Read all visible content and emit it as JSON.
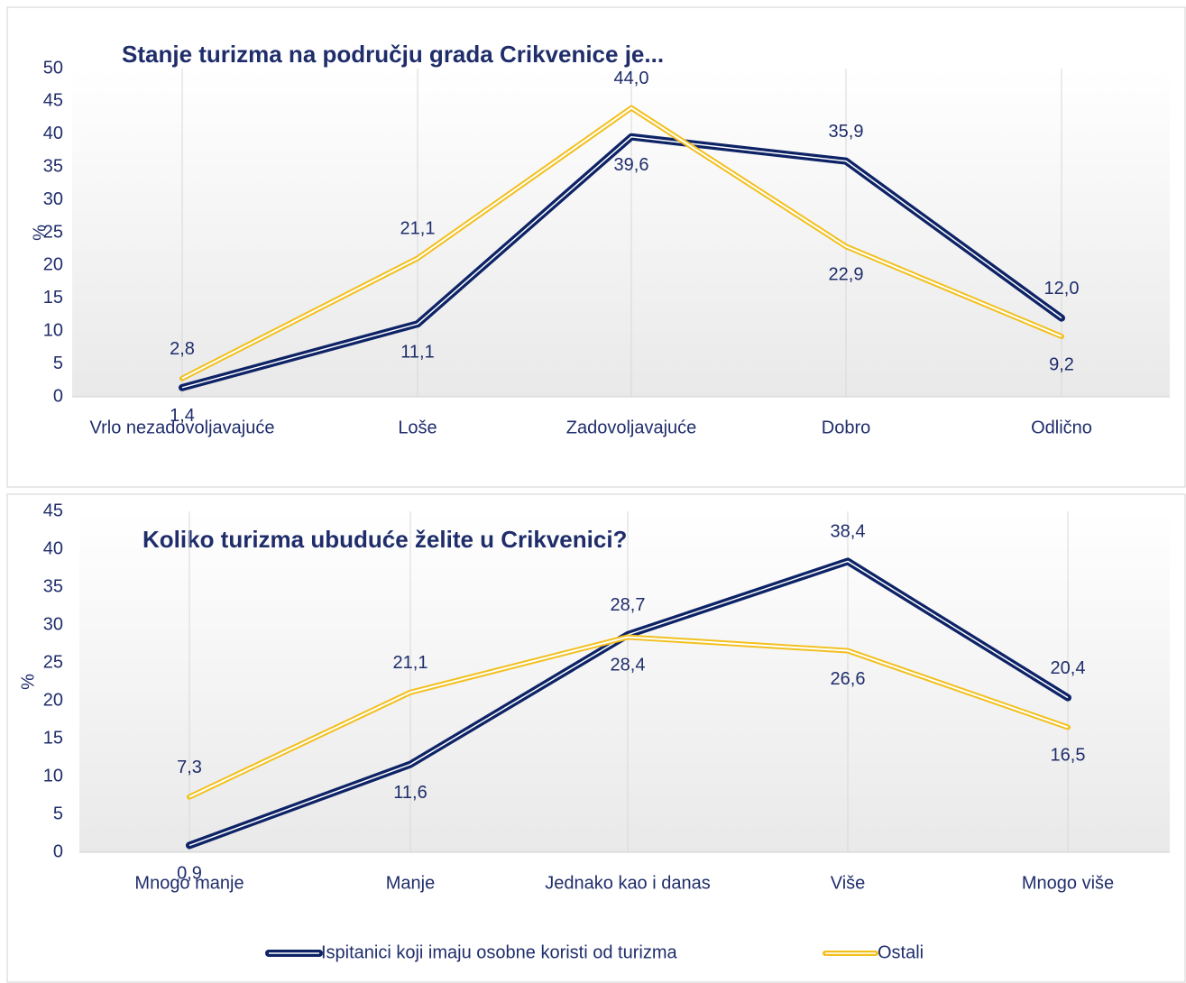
{
  "chart_data": [
    {
      "type": "line",
      "title": "Stanje turizma na području grada Crikvenice je...",
      "y_label": "%",
      "categories": [
        "Vrlo nezadovoljavajuće",
        "Loše",
        "Zadovoljavajuće",
        "Dobro",
        "Odlično"
      ],
      "series": [
        {
          "color": "#0d2366",
          "values": [
            1.4,
            11.1,
            39.6,
            35.9,
            12.0
          ],
          "value_labels": [
            "1,4",
            "11,1",
            "39,6",
            "35,9",
            "12,0"
          ]
        },
        {
          "color": "#f2c01e",
          "values": [
            2.8,
            21.1,
            44.0,
            22.9,
            9.2
          ],
          "value_labels": [
            "2,8",
            "21,1",
            "44,0",
            "22,9",
            "9,2"
          ]
        }
      ],
      "ylim": [
        0,
        50
      ],
      "yticks": [
        0,
        5,
        10,
        15,
        20,
        25,
        30,
        35,
        40,
        45,
        50
      ],
      "grid": true
    },
    {
      "type": "line",
      "title": "Koliko turizma ubuduće želite u Crikvenici?",
      "y_label": "%",
      "categories": [
        "Mnogo manje",
        "Manje",
        "Jednako kao i danas",
        "Više",
        "Mnogo više"
      ],
      "series": [
        {
          "name": "Ispitanici koji imaju osobne koristi od turizma",
          "color": "#0d2366",
          "values": [
            0.9,
            11.6,
            28.7,
            38.4,
            20.4
          ],
          "value_labels": [
            "0,9",
            "11,6",
            "28,7",
            "38,4",
            "20,4"
          ]
        },
        {
          "name": "Ostali",
          "color": "#f2c01e",
          "values": [
            7.3,
            21.1,
            28.4,
            26.6,
            16.5
          ],
          "value_labels": [
            "7,3",
            "21,1",
            "28,4",
            "26,6",
            "16,5"
          ]
        }
      ],
      "ylim": [
        0,
        45
      ],
      "yticks": [
        0,
        5,
        10,
        15,
        20,
        25,
        30,
        35,
        40,
        45
      ],
      "grid": true,
      "legend": "bottom"
    }
  ]
}
